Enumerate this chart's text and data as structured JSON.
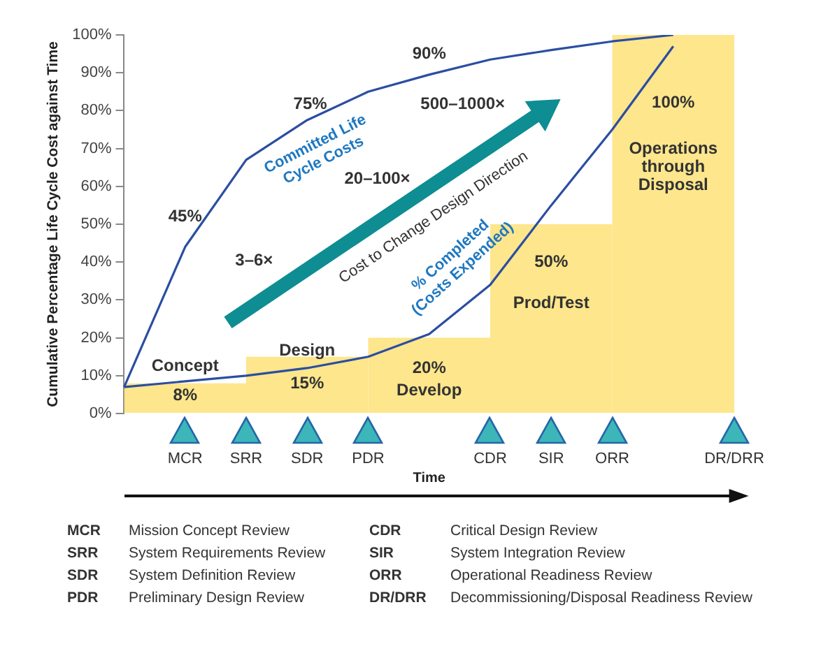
{
  "chart_data": {
    "type": "bar",
    "ylabel": "Cumulative Percentage Life Cycle Cost against Time",
    "xlabel": "Time",
    "categories": [
      null,
      "MCR",
      "SRR",
      "SDR",
      "PDR",
      null,
      "CDR",
      "SIR",
      "ORR",
      null,
      "DR/DRR"
    ],
    "ylim": [
      0,
      100
    ],
    "yticks": [
      {
        "value": 0,
        "label": "0%"
      },
      {
        "value": 10,
        "label": "10%"
      },
      {
        "value": 20,
        "label": "20%"
      },
      {
        "value": 30,
        "label": "30%"
      },
      {
        "value": 40,
        "label": "40%"
      },
      {
        "value": 50,
        "label": "50%"
      },
      {
        "value": 60,
        "label": "60%"
      },
      {
        "value": 70,
        "label": "70%"
      },
      {
        "value": 80,
        "label": "80%"
      },
      {
        "value": 90,
        "label": "90%"
      },
      {
        "value": 100,
        "label": "100%"
      }
    ],
    "series": [
      {
        "color": "#fee68c",
        "values": [
          null,
          8,
          null,
          15,
          null,
          20,
          null,
          50,
          null,
          100,
          null
        ],
        "value_labels": [
          null,
          "8%",
          null,
          "15%",
          null,
          "20%",
          null,
          "50%",
          null,
          "100%",
          null
        ]
      },
      {
        "type": "line",
        "name": "Committed Life Cycle Costs",
        "color": "#2b4ea2",
        "values": [
          7,
          44,
          67,
          77.5,
          85,
          89.5,
          93.5,
          96,
          98.3,
          100,
          null
        ]
      },
      {
        "type": "line",
        "name": "% Completed (Costs Expended)",
        "color": "#2b4ea2",
        "values": [
          7,
          8.5,
          10,
          12,
          15,
          21,
          34,
          55,
          75,
          97,
          null
        ]
      }
    ],
    "annotations": [
      "3–6×",
      "20–100×",
      "500–1000×",
      "Cost to Change Design Direction",
      "45%",
      "75%",
      "90%",
      "Concept",
      "Design",
      "Develop",
      "Prod/Test",
      "Operations through Disposal",
      "MCR",
      "Mission Concept Review",
      "SRR",
      "System Requirements Review",
      "SDR",
      "System Definition Review",
      "PDR",
      "Preliminary Design Review",
      "CDR",
      "Critical Design Review",
      "SIR",
      "System Integration Review",
      "ORR",
      "Operational Readiness Review",
      "DR/DRR",
      "Decommissioning/Disposal Readiness Review"
    ],
    "grid": false,
    "legend": false
  }
}
